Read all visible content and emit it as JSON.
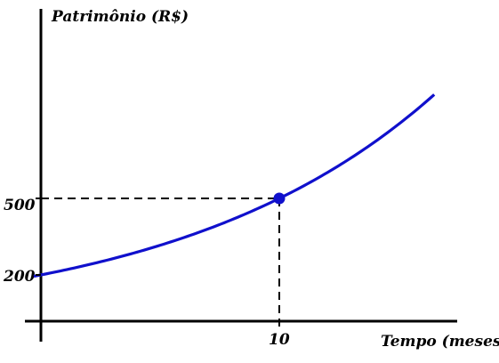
{
  "chart_data": {
    "type": "line",
    "title": "",
    "ylabel": "Patrimônio (R$)",
    "xlabel": "Tempo (meses)",
    "y_ticks": [
      {
        "label": "200",
        "value": 200
      },
      {
        "label": "500",
        "value": 500
      }
    ],
    "x_ticks": [
      {
        "label": "10",
        "value": 10
      }
    ],
    "series": [
      {
        "growth": "exponential",
        "x": [
          -0.3,
          0,
          10,
          16.5
        ],
        "y": [
          195,
          200,
          500,
          1000
        ],
        "color": "#1010cc"
      }
    ],
    "highlight_point": {
      "x": 10,
      "y": 500,
      "color": "#1010cc"
    },
    "guide_lines": "dashed",
    "grid": false,
    "legend": "none"
  }
}
